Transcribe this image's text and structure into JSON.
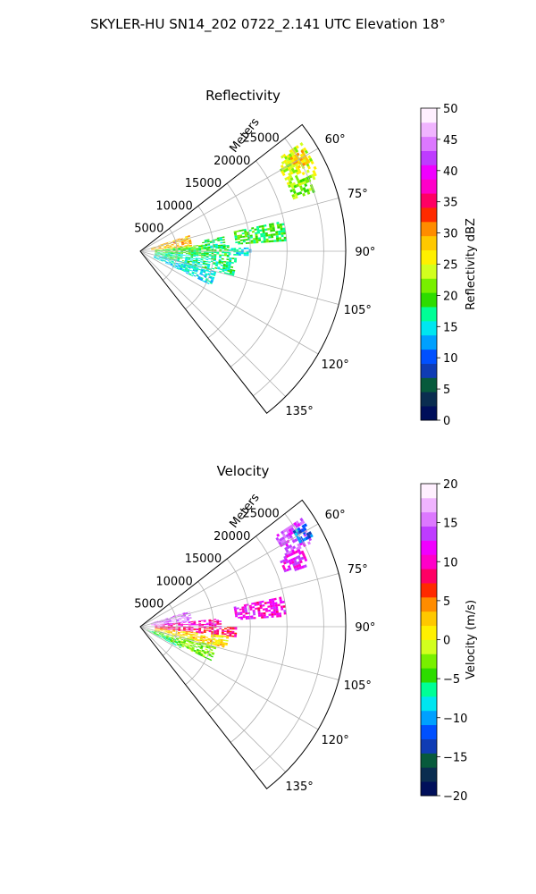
{
  "figure": {
    "suptitle": "SKYLER-HU  SN14_202  0722_2.141 UTC Elevation 18°"
  },
  "chart_data": [
    {
      "type": "polar-sector",
      "title": "Reflectivity",
      "radial_label": "Meters",
      "theta_range_deg": [
        52,
        142
      ],
      "r_range": [
        0,
        28000
      ],
      "grid": true,
      "r_ticks": [
        5000,
        10000,
        15000,
        20000,
        25000
      ],
      "theta_ticks": [
        60,
        75,
        90,
        105,
        120,
        135
      ],
      "colorbar": {
        "label": "Reflectivity dBZ",
        "range": [
          0,
          50
        ],
        "ticks": [
          0,
          5,
          10,
          15,
          20,
          25,
          30,
          35,
          40,
          45,
          50
        ]
      },
      "colormap": [
        "#000f5a",
        "#0a2d50",
        "#075a3c",
        "#0f3cb4",
        "#0050ff",
        "#00a0ff",
        "#00e6f0",
        "#00ff96",
        "#2ddc00",
        "#78f000",
        "#d2ff1e",
        "#fff000",
        "#ffc800",
        "#ff8c00",
        "#ff2a00",
        "#ff0064",
        "#ff00c8",
        "#f000ff",
        "#be3cff",
        "#dc78ff",
        "#f0b4ff",
        "#fff0ff"
      ],
      "echoes": [
        {
          "theta": [
            56,
            67
          ],
          "r": [
            22000,
            26500
          ],
          "value": 24
        },
        {
          "theta": [
            58,
            62
          ],
          "r": [
            24000,
            26000
          ],
          "value": 28
        },
        {
          "theta": [
            66,
            71
          ],
          "r": [
            22000,
            25000
          ],
          "value": 22
        },
        {
          "theta": [
            78,
            86
          ],
          "r": [
            13000,
            20000
          ],
          "value": 19
        },
        {
          "theta": [
            72,
            84
          ],
          "r": [
            1500,
            7000
          ],
          "value": 29
        },
        {
          "theta": [
            84,
            88
          ],
          "r": [
            2000,
            9000
          ],
          "value": 22
        },
        {
          "theta": [
            86,
            94
          ],
          "r": [
            2000,
            12000
          ],
          "value": 19
        },
        {
          "theta": [
            94,
            104
          ],
          "r": [
            2000,
            13000
          ],
          "value": 17
        },
        {
          "theta": [
            104,
            115
          ],
          "r": [
            2000,
            10500
          ],
          "value": 15
        },
        {
          "theta": [
            80,
            88
          ],
          "r": [
            8500,
            11500
          ],
          "value": 17
        },
        {
          "theta": [
            88,
            92
          ],
          "r": [
            12000,
            15000
          ],
          "value": 15
        }
      ]
    },
    {
      "type": "polar-sector",
      "title": "Velocity",
      "radial_label": "Meters",
      "theta_range_deg": [
        52,
        142
      ],
      "r_range": [
        0,
        28000
      ],
      "grid": true,
      "r_ticks": [
        5000,
        10000,
        15000,
        20000,
        25000
      ],
      "theta_ticks": [
        60,
        75,
        90,
        105,
        120,
        135
      ],
      "colorbar": {
        "label": "Velocity (m/s)",
        "range": [
          -20,
          20
        ],
        "ticks": [
          -20,
          -15,
          -10,
          -5,
          0,
          5,
          10,
          15,
          20
        ]
      },
      "colormap": [
        "#000f5a",
        "#0a2d50",
        "#075a3c",
        "#0f3cb4",
        "#0050ff",
        "#00a0ff",
        "#00e6f0",
        "#00ff96",
        "#2ddc00",
        "#78f000",
        "#d2ff1e",
        "#fff000",
        "#ffc800",
        "#ff8c00",
        "#ff2a00",
        "#ff0064",
        "#ff00c8",
        "#f000ff",
        "#be3cff",
        "#dc78ff",
        "#f0b4ff",
        "#fff0ff"
      ],
      "echoes": [
        {
          "theta": [
            56,
            64
          ],
          "r": [
            22000,
            26500
          ],
          "value": 14
        },
        {
          "theta": [
            58,
            62
          ],
          "r": [
            24500,
            26500
          ],
          "value": -11
        },
        {
          "theta": [
            64,
            70
          ],
          "r": [
            21000,
            24500
          ],
          "value": 12
        },
        {
          "theta": [
            78,
            86
          ],
          "r": [
            13000,
            20000
          ],
          "value": 11
        },
        {
          "theta": [
            72,
            84
          ],
          "r": [
            1500,
            7000
          ],
          "value": 15
        },
        {
          "theta": [
            84,
            90
          ],
          "r": [
            2000,
            11000
          ],
          "value": 10
        },
        {
          "theta": [
            90,
            96
          ],
          "r": [
            2000,
            13000
          ],
          "value": 8
        },
        {
          "theta": [
            96,
            104
          ],
          "r": [
            2000,
            12000
          ],
          "value": 2
        },
        {
          "theta": [
            104,
            115
          ],
          "r": [
            2000,
            10500
          ],
          "value": -3
        },
        {
          "theta": [
            110,
            118
          ],
          "r": [
            1000,
            6000
          ],
          "value": -6
        }
      ]
    }
  ]
}
